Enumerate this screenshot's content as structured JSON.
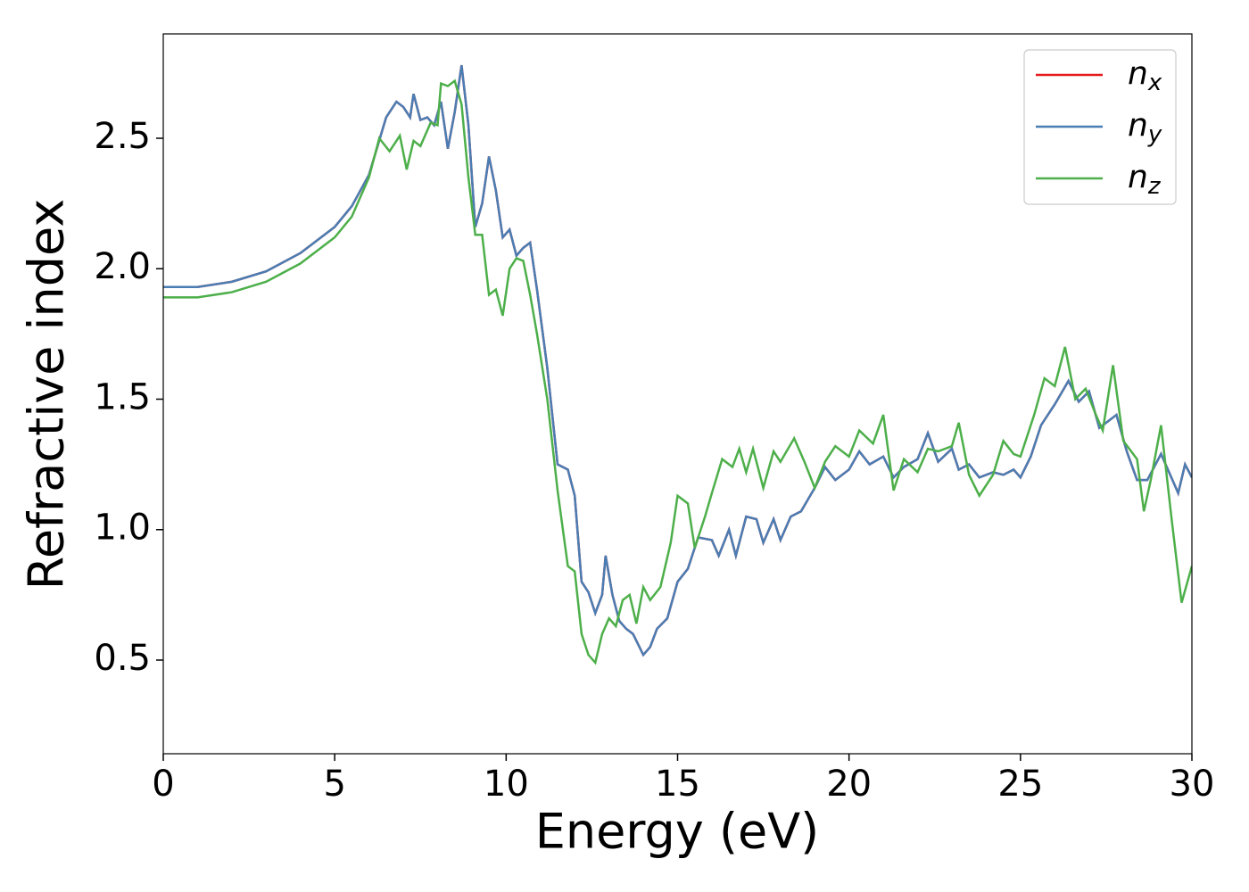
{
  "chart_data": {
    "type": "line",
    "xlabel": "Energy (eV)",
    "ylabel": "Refractive index",
    "xlim": [
      0,
      30
    ],
    "ylim": [
      0.141,
      2.9
    ],
    "xticks": [
      0,
      5,
      10,
      15,
      20,
      25,
      30
    ],
    "yticks": [
      0.5,
      {
        "value": 1.0,
        "label": "1.0"
      },
      1.5,
      {
        "value": 2.0,
        "label": "2.0"
      },
      2.5
    ],
    "legend": "upper right",
    "series": [
      {
        "name": "nx",
        "color": "#e41a1c",
        "x": [
          0,
          1,
          2,
          3,
          4,
          5,
          5.5,
          6,
          6.5,
          6.8,
          7,
          7.2,
          7.3,
          7.5,
          7.7,
          7.9,
          8.1,
          8.3,
          8.5,
          8.7,
          8.9,
          9.1,
          9.3,
          9.5,
          9.7,
          9.9,
          10.1,
          10.3,
          10.5,
          10.7,
          10.9,
          11.2,
          11.5,
          11.8,
          12.0,
          12.2,
          12.4,
          12.6,
          12.8,
          12.9,
          13.1,
          13.3,
          13.5,
          13.7,
          14.0,
          14.2,
          14.4,
          14.7,
          15.0,
          15.3,
          15.6,
          16.0,
          16.2,
          16.5,
          16.7,
          17.0,
          17.3,
          17.5,
          17.8,
          18.0,
          18.3,
          18.6,
          19.0,
          19.3,
          19.6,
          20.0,
          20.3,
          20.6,
          21.0,
          21.3,
          21.6,
          22.0,
          22.3,
          22.6,
          23.0,
          23.2,
          23.5,
          23.8,
          24.2,
          24.5,
          24.8,
          25.0,
          25.3,
          25.6,
          26.0,
          26.4,
          26.7,
          27.0,
          27.3,
          27.5,
          27.8,
          28.1,
          28.4,
          28.7,
          29.1,
          29.4,
          29.6,
          29.8,
          30
        ],
        "values": [
          1.93,
          1.93,
          1.95,
          1.99,
          2.06,
          2.16,
          2.24,
          2.36,
          2.58,
          2.64,
          2.62,
          2.58,
          2.67,
          2.57,
          2.58,
          2.55,
          2.64,
          2.46,
          2.6,
          2.78,
          2.55,
          2.16,
          2.25,
          2.43,
          2.3,
          2.12,
          2.15,
          2.05,
          2.08,
          2.1,
          1.92,
          1.62,
          1.25,
          1.23,
          1.13,
          0.8,
          0.76,
          0.68,
          0.75,
          0.9,
          0.75,
          0.65,
          0.62,
          0.6,
          0.52,
          0.55,
          0.62,
          0.66,
          0.8,
          0.85,
          0.97,
          0.96,
          0.9,
          1.0,
          0.9,
          1.05,
          1.04,
          0.95,
          1.04,
          0.96,
          1.05,
          1.07,
          1.16,
          1.24,
          1.19,
          1.23,
          1.3,
          1.25,
          1.28,
          1.2,
          1.24,
          1.27,
          1.37,
          1.26,
          1.31,
          1.23,
          1.25,
          1.2,
          1.22,
          1.21,
          1.23,
          1.2,
          1.28,
          1.4,
          1.48,
          1.57,
          1.49,
          1.53,
          1.39,
          1.41,
          1.44,
          1.3,
          1.19,
          1.19,
          1.29,
          1.2,
          1.14,
          1.25,
          1.2
        ]
      },
      {
        "name": "ny",
        "color": "#4a7db3",
        "x": [
          0,
          1,
          2,
          3,
          4,
          5,
          5.5,
          6,
          6.5,
          6.8,
          7,
          7.2,
          7.3,
          7.5,
          7.7,
          7.9,
          8.1,
          8.3,
          8.5,
          8.7,
          8.9,
          9.1,
          9.3,
          9.5,
          9.7,
          9.9,
          10.1,
          10.3,
          10.5,
          10.7,
          10.9,
          11.2,
          11.5,
          11.8,
          12.0,
          12.2,
          12.4,
          12.6,
          12.8,
          12.9,
          13.1,
          13.3,
          13.5,
          13.7,
          14.0,
          14.2,
          14.4,
          14.7,
          15.0,
          15.3,
          15.6,
          16.0,
          16.2,
          16.5,
          16.7,
          17.0,
          17.3,
          17.5,
          17.8,
          18.0,
          18.3,
          18.6,
          19.0,
          19.3,
          19.6,
          20.0,
          20.3,
          20.6,
          21.0,
          21.3,
          21.6,
          22.0,
          22.3,
          22.6,
          23.0,
          23.2,
          23.5,
          23.8,
          24.2,
          24.5,
          24.8,
          25.0,
          25.3,
          25.6,
          26.0,
          26.4,
          26.7,
          27.0,
          27.3,
          27.5,
          27.8,
          28.1,
          28.4,
          28.7,
          29.1,
          29.4,
          29.6,
          29.8,
          30
        ],
        "values": [
          1.93,
          1.93,
          1.95,
          1.99,
          2.06,
          2.16,
          2.24,
          2.36,
          2.58,
          2.64,
          2.62,
          2.58,
          2.67,
          2.57,
          2.58,
          2.55,
          2.64,
          2.46,
          2.6,
          2.78,
          2.55,
          2.16,
          2.25,
          2.43,
          2.3,
          2.12,
          2.15,
          2.05,
          2.08,
          2.1,
          1.92,
          1.62,
          1.25,
          1.23,
          1.13,
          0.8,
          0.76,
          0.68,
          0.75,
          0.9,
          0.75,
          0.65,
          0.62,
          0.6,
          0.52,
          0.55,
          0.62,
          0.66,
          0.8,
          0.85,
          0.97,
          0.96,
          0.9,
          1.0,
          0.9,
          1.05,
          1.04,
          0.95,
          1.04,
          0.96,
          1.05,
          1.07,
          1.16,
          1.24,
          1.19,
          1.23,
          1.3,
          1.25,
          1.28,
          1.2,
          1.24,
          1.27,
          1.37,
          1.26,
          1.31,
          1.23,
          1.25,
          1.2,
          1.22,
          1.21,
          1.23,
          1.2,
          1.28,
          1.4,
          1.48,
          1.57,
          1.49,
          1.53,
          1.39,
          1.41,
          1.44,
          1.3,
          1.19,
          1.19,
          1.29,
          1.2,
          1.14,
          1.25,
          1.2
        ]
      },
      {
        "name": "nz",
        "color": "#4daf4a",
        "x": [
          0,
          1,
          2,
          3,
          4,
          5,
          5.5,
          6,
          6.3,
          6.6,
          6.9,
          7.1,
          7.3,
          7.5,
          7.8,
          8.0,
          8.1,
          8.3,
          8.5,
          8.7,
          8.9,
          9.1,
          9.3,
          9.5,
          9.7,
          9.9,
          10.1,
          10.3,
          10.5,
          10.7,
          10.9,
          11.2,
          11.5,
          11.8,
          12.0,
          12.2,
          12.4,
          12.6,
          12.8,
          13.0,
          13.2,
          13.4,
          13.6,
          13.8,
          14.0,
          14.2,
          14.5,
          14.8,
          15.0,
          15.3,
          15.5,
          15.8,
          16.0,
          16.3,
          16.6,
          16.8,
          17.0,
          17.2,
          17.5,
          17.8,
          18.0,
          18.4,
          18.7,
          19.0,
          19.3,
          19.6,
          20.0,
          20.3,
          20.7,
          21.0,
          21.3,
          21.6,
          22.0,
          22.3,
          22.6,
          23.0,
          23.2,
          23.5,
          23.8,
          24.2,
          24.5,
          24.8,
          25.0,
          25.4,
          25.7,
          26.0,
          26.3,
          26.6,
          26.9,
          27.2,
          27.4,
          27.7,
          28.0,
          28.4,
          28.6,
          28.8,
          29.1,
          29.4,
          29.7,
          30
        ],
        "values": [
          1.89,
          1.89,
          1.91,
          1.95,
          2.02,
          2.12,
          2.2,
          2.35,
          2.5,
          2.45,
          2.51,
          2.38,
          2.49,
          2.47,
          2.56,
          2.55,
          2.71,
          2.7,
          2.72,
          2.63,
          2.35,
          2.13,
          2.13,
          1.9,
          1.92,
          1.82,
          2.0,
          2.04,
          2.03,
          1.9,
          1.75,
          1.5,
          1.15,
          0.86,
          0.84,
          0.6,
          0.52,
          0.49,
          0.6,
          0.66,
          0.63,
          0.73,
          0.75,
          0.64,
          0.78,
          0.73,
          0.78,
          0.95,
          1.13,
          1.1,
          0.93,
          1.05,
          1.14,
          1.27,
          1.24,
          1.31,
          1.22,
          1.31,
          1.16,
          1.3,
          1.26,
          1.35,
          1.26,
          1.16,
          1.26,
          1.32,
          1.28,
          1.38,
          1.33,
          1.44,
          1.15,
          1.27,
          1.22,
          1.31,
          1.3,
          1.32,
          1.41,
          1.21,
          1.13,
          1.21,
          1.34,
          1.29,
          1.28,
          1.44,
          1.58,
          1.55,
          1.7,
          1.5,
          1.54,
          1.44,
          1.38,
          1.63,
          1.34,
          1.27,
          1.07,
          1.19,
          1.4,
          1.05,
          0.72,
          0.86
        ]
      }
    ]
  }
}
